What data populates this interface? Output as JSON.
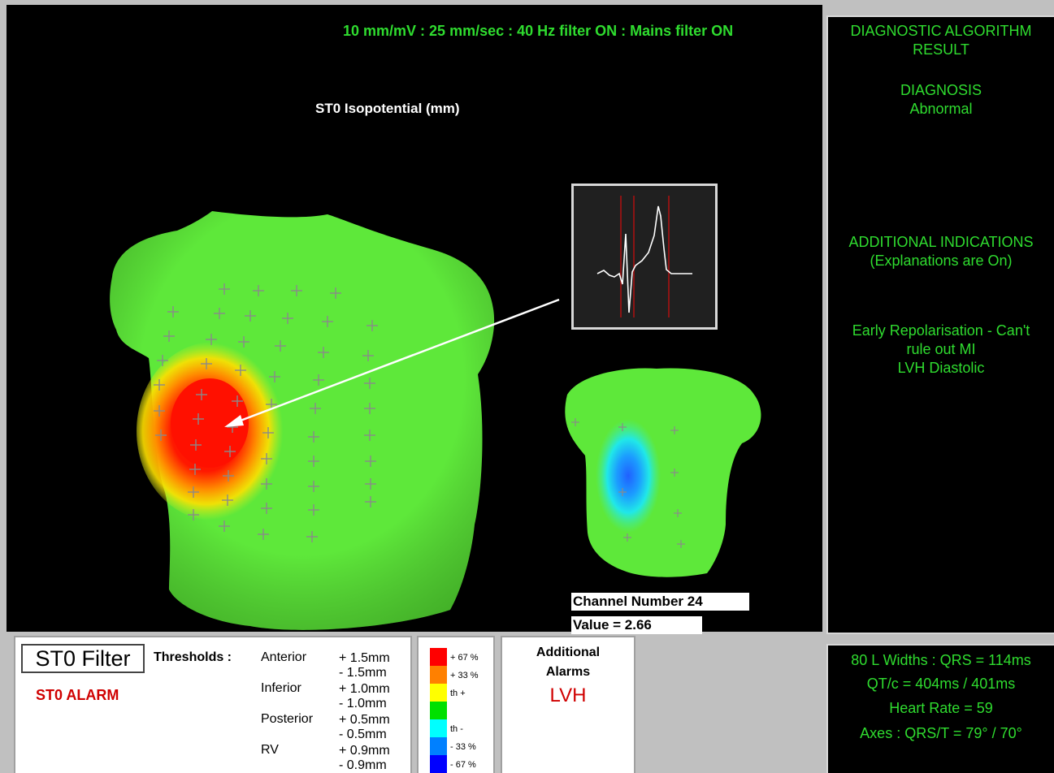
{
  "header": {
    "settings": "10 mm/mV : 25 mm/sec : 40 Hz filter ON : Mains filter ON"
  },
  "map": {
    "title": "ST0 Isopotential (mm)"
  },
  "channel": {
    "number": "Channel Number 24",
    "value": "Value = 2.66"
  },
  "diagnostic": {
    "algorithm_line1": "DIAGNOSTIC ALGORITHM",
    "algorithm_line2": "RESULT",
    "diagnosis_label": "DIAGNOSIS",
    "diagnosis_value": "Abnormal",
    "additional_line1": "ADDITIONAL INDICATIONS",
    "additional_line2": "(Explanations are On)",
    "indication_line1": "Early Repolarisation - Can't",
    "indication_line2": "rule out MI",
    "indication_line3": "LVH Diastolic"
  },
  "measurements": {
    "widths": "80 L Widths : QRS = 114ms",
    "qtc": "QT/c = 404ms / 401ms",
    "heart_rate": "Heart Rate = 59",
    "axes": "Axes : QRS/T = 79° / 70°"
  },
  "filter": {
    "button_label": "ST0 Filter",
    "alarm": "ST0 ALARM",
    "thresholds_label": "Thresholds :",
    "sites": [
      {
        "name": "Anterior",
        "values": "+ 1.5mm\n- 1.5mm"
      },
      {
        "name": "Inferior",
        "values": "+ 1.0mm\n- 1.0mm"
      },
      {
        "name": "Posterior",
        "values": "+ 0.5mm\n- 0.5mm"
      },
      {
        "name": "RV",
        "values": "+ 0.9mm\n- 0.9mm"
      }
    ]
  },
  "scale": {
    "entries": [
      {
        "label": "+ 67 %",
        "color": "#ff0000"
      },
      {
        "label": "+ 33 %",
        "color": "#ff8000"
      },
      {
        "label": "th +",
        "color": "#ffff00"
      },
      {
        "label": "",
        "color": "#00e000"
      },
      {
        "label": "th -",
        "color": "#00ffff"
      },
      {
        "label": "- 33 %",
        "color": "#0080ff"
      },
      {
        "label": "- 67 %",
        "color": "#0000ff"
      }
    ]
  },
  "additional_alarms": {
    "title_line1": "Additional",
    "title_line2": "Alarms",
    "value": "LVH"
  },
  "colors": {
    "text_green": "#2fdc2f",
    "alarm_red": "#d00000",
    "torso_green": "#5ee83a"
  },
  "icons": [
    "ecg-waveform-icon",
    "pointer-arrow-icon",
    "electrode-cross-icon"
  ]
}
